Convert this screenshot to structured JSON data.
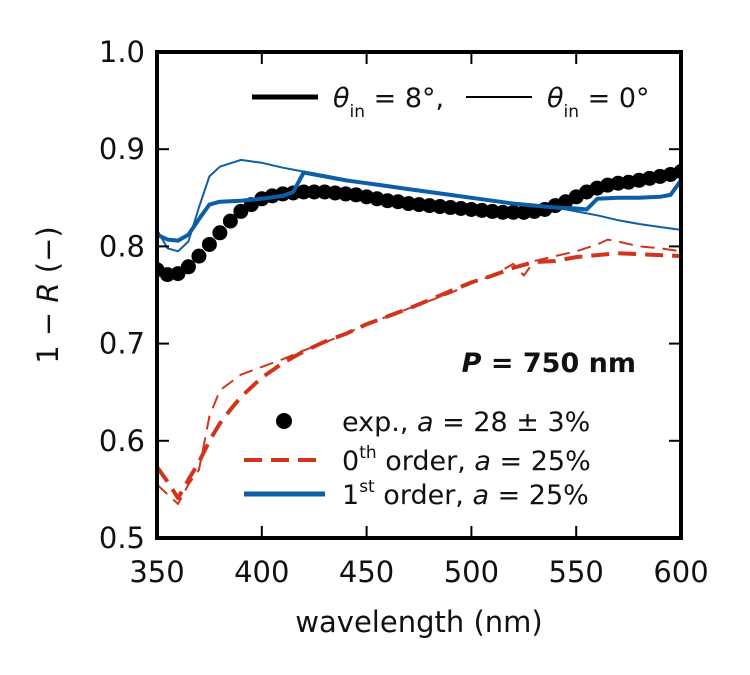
{
  "chart_data": {
    "type": "line",
    "xlabel": "wavelength (nm)",
    "ylabel": "1 − R (−)",
    "ylabel_parts": {
      "pre": "1 − ",
      "var": "R",
      "post": " (−)"
    },
    "xlim": [
      350,
      600
    ],
    "ylim": [
      0.5,
      1.0
    ],
    "xticks": [
      350,
      400,
      450,
      500,
      550,
      600
    ],
    "yticks": [
      0.5,
      0.6,
      0.7,
      0.8,
      0.9,
      1.0
    ],
    "xtick_labels": [
      "350",
      "400",
      "450",
      "500",
      "550",
      "600"
    ],
    "ytick_labels": [
      "0.5",
      "0.6",
      "0.7",
      "0.8",
      "0.9",
      "1.0"
    ],
    "grid": false,
    "annotation": {
      "var": "P",
      "rest": " = 750 nm"
    },
    "angle_legend": {
      "thick": {
        "label": "θ",
        "sub": "in",
        "rest": " = 8°,"
      },
      "thin": {
        "label": "θ",
        "sub": "in",
        "rest": " = 0°"
      }
    },
    "legend": {
      "placement": "lower-right",
      "entries": [
        {
          "pre": "exp., ",
          "var": "a",
          "rest": " = 28 ± 3%"
        },
        {
          "pre": "0",
          "sup": "th",
          "post": " order, ",
          "var": "a",
          "rest": " = 25%"
        },
        {
          "pre": "1",
          "sup": "st",
          "post": " order, ",
          "var": "a",
          "rest": " = 25%"
        }
      ]
    },
    "colors": {
      "exp": "#000000",
      "order0": "#d0341c",
      "order1": "#0d5ea6"
    },
    "series": [
      {
        "group": "exp",
        "style": "markers",
        "x": [
          350,
          355,
          360,
          365,
          370,
          375,
          380,
          385,
          390,
          395,
          400,
          405,
          410,
          415,
          420,
          425,
          430,
          435,
          440,
          445,
          450,
          455,
          460,
          465,
          470,
          475,
          480,
          485,
          490,
          495,
          500,
          505,
          510,
          515,
          520,
          525,
          530,
          535,
          540,
          545,
          550,
          555,
          560,
          565,
          570,
          575,
          580,
          585,
          590,
          595,
          600
        ],
        "y": [
          0.776,
          0.771,
          0.772,
          0.779,
          0.79,
          0.802,
          0.814,
          0.826,
          0.836,
          0.843,
          0.849,
          0.852,
          0.854,
          0.855,
          0.856,
          0.856,
          0.856,
          0.855,
          0.854,
          0.853,
          0.851,
          0.849,
          0.847,
          0.846,
          0.844,
          0.843,
          0.842,
          0.841,
          0.84,
          0.839,
          0.838,
          0.837,
          0.836,
          0.835,
          0.835,
          0.835,
          0.836,
          0.838,
          0.842,
          0.846,
          0.851,
          0.856,
          0.86,
          0.863,
          0.865,
          0.866,
          0.868,
          0.87,
          0.872,
          0.874,
          0.877
        ]
      },
      {
        "group": "order0",
        "style": "dashed",
        "weight": "thick",
        "x": [
          350,
          355,
          360,
          365,
          370,
          375,
          380,
          385,
          390,
          395,
          400,
          410,
          420,
          430,
          440,
          450,
          460,
          470,
          480,
          490,
          500,
          510,
          520,
          530,
          540,
          545,
          550,
          560,
          570,
          580,
          590,
          600
        ],
        "y": [
          0.573,
          0.558,
          0.541,
          0.56,
          0.578,
          0.6,
          0.618,
          0.632,
          0.645,
          0.655,
          0.665,
          0.68,
          0.692,
          0.702,
          0.71,
          0.72,
          0.728,
          0.736,
          0.745,
          0.754,
          0.763,
          0.77,
          0.778,
          0.784,
          0.785,
          0.787,
          0.789,
          0.791,
          0.793,
          0.792,
          0.791,
          0.79
        ]
      },
      {
        "group": "order0",
        "style": "dashed",
        "weight": "thin",
        "x": [
          350,
          355,
          360,
          365,
          370,
          375,
          380,
          385,
          390,
          400,
          410,
          420,
          430,
          440,
          450,
          460,
          470,
          480,
          490,
          500,
          510,
          520,
          525,
          530,
          540,
          550,
          560,
          565,
          570,
          580,
          590,
          600
        ],
        "y": [
          0.555,
          0.545,
          0.535,
          0.555,
          0.57,
          0.625,
          0.652,
          0.66,
          0.668,
          0.676,
          0.684,
          0.693,
          0.701,
          0.71,
          0.72,
          0.728,
          0.736,
          0.744,
          0.752,
          0.762,
          0.77,
          0.782,
          0.77,
          0.785,
          0.79,
          0.795,
          0.802,
          0.807,
          0.805,
          0.8,
          0.798,
          0.795
        ]
      },
      {
        "group": "order1",
        "style": "solid",
        "weight": "thick",
        "x": [
          350,
          355,
          360,
          365,
          370,
          375,
          380,
          390,
          400,
          410,
          415,
          420,
          430,
          440,
          450,
          460,
          470,
          480,
          490,
          500,
          510,
          520,
          530,
          540,
          550,
          555,
          560,
          570,
          580,
          590,
          595,
          600
        ],
        "y": [
          0.812,
          0.807,
          0.806,
          0.812,
          0.828,
          0.843,
          0.846,
          0.847,
          0.849,
          0.852,
          0.856,
          0.876,
          0.872,
          0.868,
          0.865,
          0.862,
          0.859,
          0.856,
          0.853,
          0.85,
          0.847,
          0.844,
          0.842,
          0.84,
          0.839,
          0.838,
          0.849,
          0.85,
          0.85,
          0.851,
          0.853,
          0.868
        ]
      },
      {
        "group": "order1",
        "style": "solid",
        "weight": "thin",
        "x": [
          350,
          355,
          360,
          365,
          370,
          375,
          380,
          390,
          400,
          410,
          420,
          430,
          440,
          450,
          460,
          470,
          480,
          490,
          500,
          510,
          520,
          530,
          540,
          550,
          560,
          570,
          580,
          590,
          600
        ],
        "y": [
          0.817,
          0.798,
          0.795,
          0.805,
          0.84,
          0.872,
          0.882,
          0.889,
          0.886,
          0.881,
          0.877,
          0.873,
          0.869,
          0.865,
          0.862,
          0.859,
          0.856,
          0.853,
          0.85,
          0.847,
          0.845,
          0.843,
          0.84,
          0.836,
          0.832,
          0.827,
          0.823,
          0.82,
          0.817
        ]
      }
    ]
  }
}
